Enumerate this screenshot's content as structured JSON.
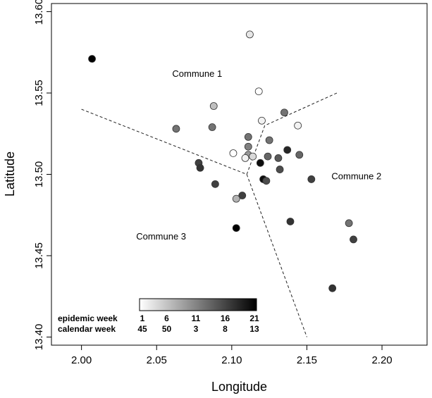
{
  "chart_data": {
    "type": "scatter",
    "title": "",
    "xlabel": "Longitude",
    "ylabel": "Latitude",
    "xlim": [
      1.98,
      2.23
    ],
    "ylim": [
      13.395,
      13.605
    ],
    "x_ticks": [
      "2.00",
      "2.05",
      "2.10",
      "2.15",
      "2.20"
    ],
    "y_ticks": [
      "13.40",
      "13.45",
      "13.50",
      "13.55",
      "13.60"
    ],
    "x_tick_values": [
      2.0,
      2.05,
      2.1,
      2.15,
      2.2
    ],
    "y_tick_values": [
      13.4,
      13.45,
      13.5,
      13.55,
      13.6
    ],
    "grid": false,
    "points": [
      {
        "x": 2.007,
        "y": 13.571,
        "week": 21
      },
      {
        "x": 2.112,
        "y": 13.586,
        "week": 3
      },
      {
        "x": 2.118,
        "y": 13.551,
        "week": 1
      },
      {
        "x": 2.088,
        "y": 13.542,
        "week": 6
      },
      {
        "x": 2.135,
        "y": 13.538,
        "week": 12
      },
      {
        "x": 2.12,
        "y": 13.533,
        "week": 2
      },
      {
        "x": 2.144,
        "y": 13.53,
        "week": 2
      },
      {
        "x": 2.063,
        "y": 13.528,
        "week": 12
      },
      {
        "x": 2.087,
        "y": 13.529,
        "week": 12
      },
      {
        "x": 2.111,
        "y": 13.523,
        "week": 12
      },
      {
        "x": 2.125,
        "y": 13.521,
        "week": 12
      },
      {
        "x": 2.111,
        "y": 13.517,
        "week": 11
      },
      {
        "x": 2.137,
        "y": 13.515,
        "week": 18
      },
      {
        "x": 2.101,
        "y": 13.513,
        "week": 1
      },
      {
        "x": 2.111,
        "y": 13.512,
        "week": 9
      },
      {
        "x": 2.114,
        "y": 13.511,
        "week": 4
      },
      {
        "x": 2.109,
        "y": 13.51,
        "week": 2
      },
      {
        "x": 2.124,
        "y": 13.511,
        "week": 13
      },
      {
        "x": 2.131,
        "y": 13.51,
        "week": 14
      },
      {
        "x": 2.145,
        "y": 13.512,
        "week": 13
      },
      {
        "x": 2.119,
        "y": 13.507,
        "week": 20
      },
      {
        "x": 2.078,
        "y": 13.507,
        "week": 16
      },
      {
        "x": 2.079,
        "y": 13.504,
        "week": 17
      },
      {
        "x": 2.132,
        "y": 13.503,
        "week": 15
      },
      {
        "x": 2.121,
        "y": 13.497,
        "week": 20
      },
      {
        "x": 2.123,
        "y": 13.496,
        "week": 15
      },
      {
        "x": 2.153,
        "y": 13.497,
        "week": 16
      },
      {
        "x": 2.089,
        "y": 13.494,
        "week": 16
      },
      {
        "x": 2.107,
        "y": 13.487,
        "week": 16
      },
      {
        "x": 2.103,
        "y": 13.485,
        "week": 7
      },
      {
        "x": 2.139,
        "y": 13.471,
        "week": 17
      },
      {
        "x": 2.178,
        "y": 13.47,
        "week": 12
      },
      {
        "x": 2.103,
        "y": 13.467,
        "week": 21
      },
      {
        "x": 2.181,
        "y": 13.46,
        "week": 16
      },
      {
        "x": 2.167,
        "y": 13.43,
        "week": 17
      }
    ],
    "boundary_lines": [
      [
        [
          2.0,
          13.54
        ],
        [
          2.11,
          13.5
        ]
      ],
      [
        [
          2.11,
          13.5
        ],
        [
          2.122,
          13.53
        ],
        [
          2.17,
          13.55
        ]
      ],
      [
        [
          2.11,
          13.5
        ],
        [
          2.15,
          13.4
        ]
      ]
    ],
    "annotations": [
      {
        "text": "Commune 1",
        "x": 2.077,
        "y": 13.56
      },
      {
        "text": "Commune 2",
        "x": 2.183,
        "y": 13.497
      },
      {
        "text": "Commune 3",
        "x": 2.053,
        "y": 13.46
      }
    ],
    "legend": {
      "color_scale": "white-to-black",
      "placement": "bottom-left",
      "rows": [
        {
          "label": "epidemic week",
          "ticks": [
            "1",
            "6",
            "11",
            "16",
            "21"
          ]
        },
        {
          "label": "calendar week",
          "ticks": [
            "45",
            "50",
            "3",
            "8",
            "13"
          ]
        }
      ],
      "min": 1,
      "max": 21
    }
  }
}
